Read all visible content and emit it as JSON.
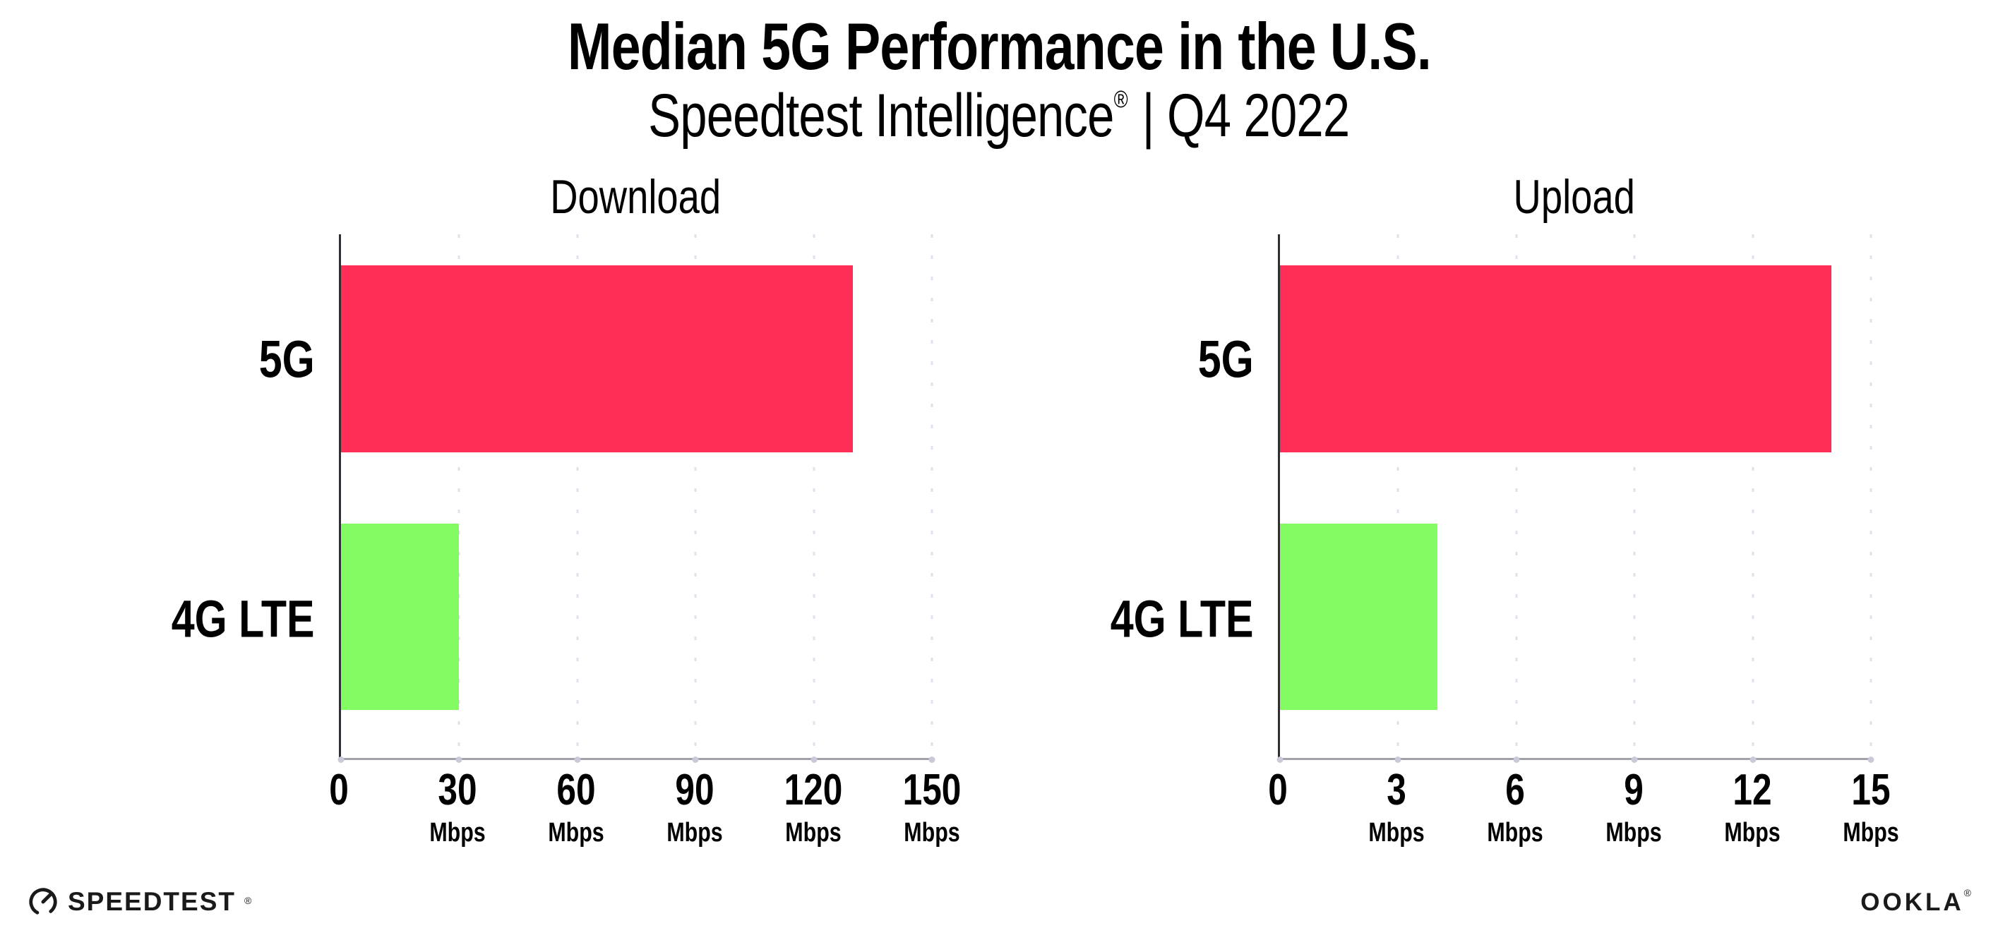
{
  "header": {
    "title": "Median 5G Performance in the U.S.",
    "subtitle_brand": "Speedtest Intelligence",
    "subtitle_reg": "®",
    "subtitle_rest": "| Q4 2022"
  },
  "units": {
    "mbps": "Mbps"
  },
  "colors": {
    "bar_5g_pink": "#ff2e56",
    "bar_4g_green": "#83fb63",
    "gridline": "#e1e1ed",
    "baseline": "#a2a2aa",
    "y_axis": "#2e2e33",
    "text": "#000000"
  },
  "chart_data": [
    {
      "type": "bar",
      "orientation": "horizontal",
      "title": "Download",
      "categories": [
        "5G",
        "4G LTE"
      ],
      "values": [
        130,
        30
      ],
      "unit": "Mbps",
      "xlim": [
        0,
        150
      ],
      "xticks": [
        0,
        30,
        60,
        90,
        120,
        150
      ],
      "grid": "vertical-dotted",
      "legend": "none",
      "bar_colors": [
        "#ff2e56",
        "#83fb63"
      ]
    },
    {
      "type": "bar",
      "orientation": "horizontal",
      "title": "Upload",
      "categories": [
        "5G",
        "4G LTE"
      ],
      "values": [
        14,
        4
      ],
      "unit": "Mbps",
      "xlim": [
        0,
        15
      ],
      "xticks": [
        0,
        3,
        6,
        9,
        12,
        15
      ],
      "grid": "vertical-dotted",
      "legend": "none",
      "bar_colors": [
        "#ff2e56",
        "#83fb63"
      ]
    }
  ],
  "footer": {
    "speedtest_label": "SPEEDTEST",
    "speedtest_tm": "®",
    "ookla_label": "OOKLA",
    "ookla_tm": "®"
  }
}
